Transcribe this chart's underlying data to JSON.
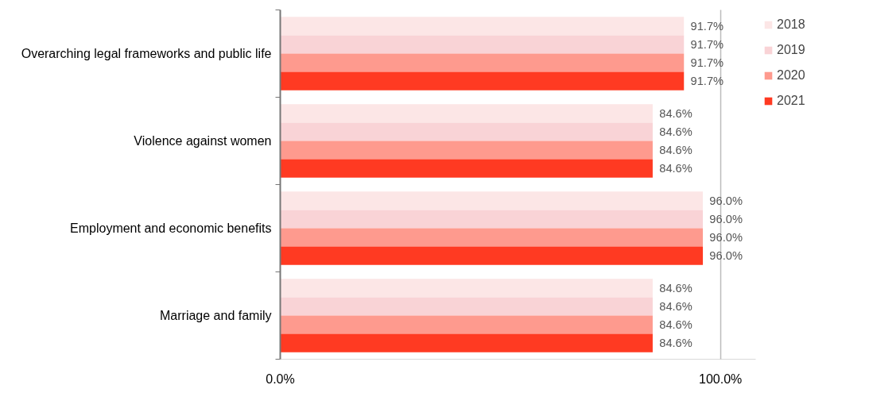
{
  "chart_data": {
    "type": "bar",
    "orientation": "horizontal",
    "categories": [
      "Overarching legal frameworks and public life",
      "Violence against women",
      "Employment and economic benefits",
      "Marriage and family"
    ],
    "series": [
      {
        "name": "2018",
        "color": "#fce6e6",
        "values": [
          91.7,
          84.6,
          96.0,
          84.6
        ],
        "value_labels": [
          "91.7%",
          "84.6%",
          "96.0%",
          "84.6%"
        ]
      },
      {
        "name": "2019",
        "color": "#f9d3d6",
        "values": [
          91.7,
          84.6,
          96.0,
          84.6
        ],
        "value_labels": [
          "91.7%",
          "84.6%",
          "96.0%",
          "84.6%"
        ]
      },
      {
        "name": "2020",
        "color": "#fe9a8e",
        "values": [
          91.7,
          84.6,
          96.0,
          84.6
        ],
        "value_labels": [
          "91.7%",
          "84.6%",
          "96.0%",
          "84.6%"
        ]
      },
      {
        "name": "2021",
        "color": "#ff3a22",
        "values": [
          91.7,
          84.6,
          96.0,
          84.6
        ],
        "value_labels": [
          "91.7%",
          "84.6%",
          "96.0%",
          "84.6%"
        ]
      }
    ],
    "xlim": [
      0,
      108
    ],
    "xticks": [
      {
        "value": 0,
        "label": "0.0%"
      },
      {
        "value": 100,
        "label": "100.0%"
      }
    ],
    "grid": "x",
    "legend": "top right"
  }
}
